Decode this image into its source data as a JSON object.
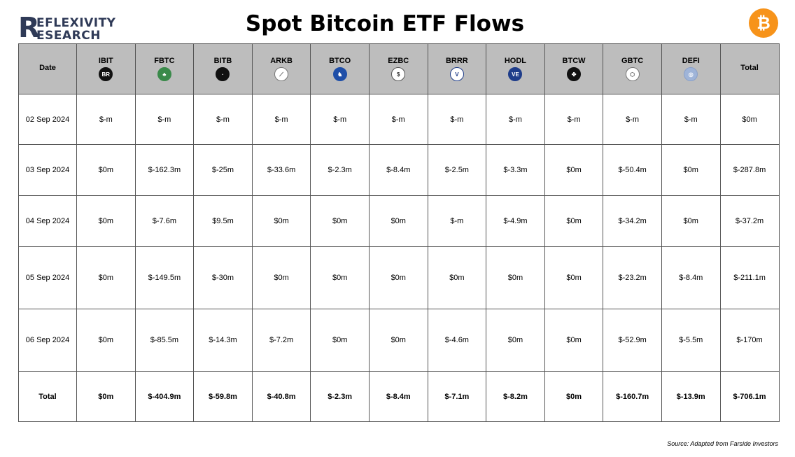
{
  "brand": {
    "logo_big_letter": "R",
    "logo_line1": "EFLEXIVITY",
    "logo_line2": "ESEARCH"
  },
  "title": "Spot Bitcoin ETF Flows",
  "bitcoin_icon_glyph": "₿",
  "source": "Source: Adapted from Farside Investors",
  "chart_data": {
    "type": "table",
    "title": "Spot Bitcoin ETF Flows",
    "columns": [
      "Date",
      "IBIT",
      "FBTC",
      "BITB",
      "ARKB",
      "BTCO",
      "EZBC",
      "BRRR",
      "HODL",
      "BTCW",
      "GBTC",
      "DEFI",
      "Total"
    ],
    "fund_icons": [
      {
        "glyph": "BR",
        "bg": "#111111",
        "fg": "#ffffff",
        "border": "#111111"
      },
      {
        "glyph": "♣",
        "bg": "#3a8a4a",
        "fg": "#ffffff",
        "border": "#3a8a4a"
      },
      {
        "glyph": "·",
        "bg": "#111111",
        "fg": "#ffffff",
        "border": "#111111"
      },
      {
        "glyph": "⟋",
        "bg": "#ffffff",
        "fg": "#444444",
        "border": "#777777"
      },
      {
        "glyph": "♞",
        "bg": "#1f4fa8",
        "fg": "#ffffff",
        "border": "#1f4fa8"
      },
      {
        "glyph": "$",
        "bg": "#ffffff",
        "fg": "#333333",
        "border": "#555555"
      },
      {
        "glyph": "V",
        "bg": "#ffffff",
        "fg": "#1f3d8a",
        "border": "#1f3d8a"
      },
      {
        "glyph": "VE",
        "bg": "#1f3d8a",
        "fg": "#ffffff",
        "border": "#1f3d8a"
      },
      {
        "glyph": "✤",
        "bg": "#111111",
        "fg": "#ffffff",
        "border": "#111111"
      },
      {
        "glyph": "⬡",
        "bg": "#ffffff",
        "fg": "#555555",
        "border": "#777777"
      },
      {
        "glyph": "◎",
        "bg": "#9fb4d8",
        "fg": "#ffffff",
        "border": "#8aa0c8"
      }
    ],
    "rows": [
      [
        "02 Sep 2024",
        "$-m",
        "$-m",
        "$-m",
        "$-m",
        "$-m",
        "$-m",
        "$-m",
        "$-m",
        "$-m",
        "$-m",
        "$-m",
        "$0m"
      ],
      [
        "03 Sep 2024",
        "$0m",
        "$-162.3m",
        "$-25m",
        "$-33.6m",
        "$-2.3m",
        "$-8.4m",
        "$-2.5m",
        "$-3.3m",
        "$0m",
        "$-50.4m",
        "$0m",
        "$-287.8m"
      ],
      [
        "04 Sep 2024",
        "$0m",
        "$-7.6m",
        "$9.5m",
        "$0m",
        "$0m",
        "$0m",
        "$-m",
        "$-4.9m",
        "$0m",
        "$-34.2m",
        "$0m",
        "$-37.2m"
      ],
      [
        "05 Sep 2024",
        "$0m",
        "$-149.5m",
        "$-30m",
        "$0m",
        "$0m",
        "$0m",
        "$0m",
        "$0m",
        "$0m",
        "$-23.2m",
        "$-8.4m",
        "$-211.1m"
      ],
      [
        "06 Sep 2024",
        "$0m",
        "$-85.5m",
        "$-14.3m",
        "$-7.2m",
        "$0m",
        "$0m",
        "$-4.6m",
        "$0m",
        "$0m",
        "$-52.9m",
        "$-5.5m",
        "$-170m"
      ],
      [
        "Total",
        "$0m",
        "$-404.9m",
        "$-59.8m",
        "$-40.8m",
        "$-2.3m",
        "$-8.4m",
        "$-7.1m",
        "$-8.2m",
        "$0m",
        "$-160.7m",
        "$-13.9m",
        "$-706.1m"
      ]
    ]
  }
}
